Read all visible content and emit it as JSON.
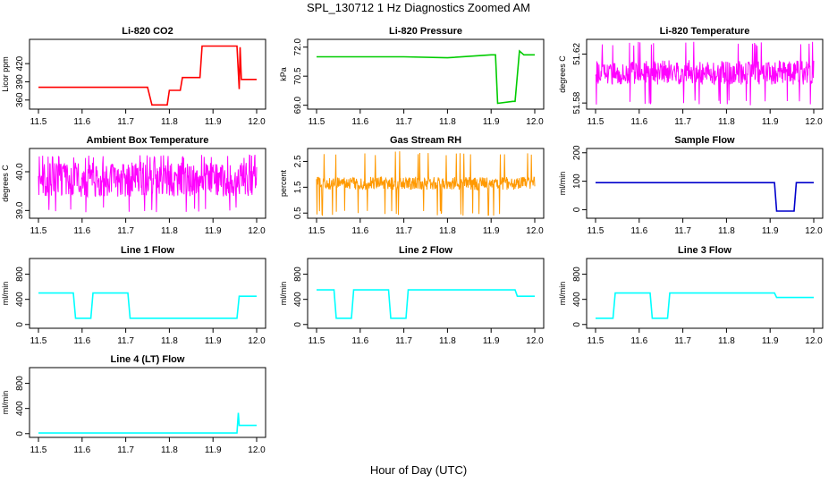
{
  "main_title": "SPL_130712  1 Hz Diagnostics Zoomed AM",
  "x_axis_label": "Hour of Day (UTC)",
  "chart_data": [
    {
      "type": "line",
      "title": "Li-820 CO2",
      "ylabel": "Licor ppm",
      "color": "#ff0000",
      "xlim": [
        11.5,
        12.0
      ],
      "xticks": [
        "11.5",
        "11.6",
        "11.7",
        "11.8",
        "11.9",
        "12.0"
      ],
      "ylim": [
        345,
        460
      ],
      "yticks": [
        360,
        390,
        420
      ],
      "series": [
        {
          "x": [
            11.5,
            11.75,
            11.76,
            11.795,
            11.8,
            11.825,
            11.83,
            11.87,
            11.875,
            11.955,
            11.96,
            11.962,
            11.965,
            12.0
          ],
          "values": [
            381,
            381,
            352,
            352,
            376,
            376,
            397,
            397,
            449,
            449,
            378,
            447,
            394,
            394
          ]
        }
      ]
    },
    {
      "type": "line",
      "title": "Li-820 Pressure",
      "ylabel": "kPa",
      "color": "#00cc00",
      "xlim": [
        11.5,
        12.0
      ],
      "xticks": [
        "11.5",
        "11.6",
        "11.7",
        "11.8",
        "11.9",
        "12.0"
      ],
      "ylim": [
        68.8,
        72.4
      ],
      "yticks": [
        "69.0",
        "70.5",
        "72.0"
      ],
      "series": [
        {
          "x": [
            11.5,
            11.6,
            11.7,
            11.8,
            11.9,
            11.91,
            11.915,
            11.95,
            11.955,
            11.965,
            11.975,
            12.0
          ],
          "values": [
            71.5,
            71.5,
            71.5,
            71.45,
            71.6,
            71.6,
            69.1,
            69.2,
            69.2,
            71.8,
            71.6,
            71.6
          ]
        }
      ]
    },
    {
      "type": "line",
      "title": "Li-820 Temperature",
      "ylabel": "degrees C",
      "color": "#ff00ff",
      "xlim": [
        11.5,
        12.0
      ],
      "xticks": [
        "11.5",
        "11.6",
        "11.7",
        "11.8",
        "11.9",
        "12.0"
      ],
      "ylim": [
        51.575,
        51.632
      ],
      "yticks": [
        "51.58",
        "51.62"
      ],
      "series": [
        {
          "x": [
            11.5,
            12.0
          ],
          "noise": {
            "center": 51.605,
            "amp": 0.01,
            "spike_hi": 51.63,
            "spike_lo": 51.578
          }
        }
      ]
    },
    {
      "type": "line",
      "title": "Ambient Box Temperature",
      "ylabel": "degrees C",
      "color": "#ff00ff",
      "xlim": [
        11.5,
        12.0
      ],
      "xticks": [
        "11.5",
        "11.6",
        "11.7",
        "11.8",
        "11.9",
        "12.0"
      ],
      "ylim": [
        38.8,
        40.6
      ],
      "yticks": [
        "39.0",
        "40.0"
      ],
      "series": [
        {
          "x": [
            11.5,
            12.0
          ],
          "noise": {
            "center": 39.8,
            "amp": 0.45,
            "spike_hi": 40.45,
            "spike_lo": 38.95
          }
        }
      ]
    },
    {
      "type": "line",
      "title": "Gas Stream RH",
      "ylabel": "percent",
      "color": "#ff9900",
      "xlim": [
        11.5,
        12.0
      ],
      "xticks": [
        "11.5",
        "11.6",
        "11.7",
        "11.8",
        "11.9",
        "12.0"
      ],
      "ylim": [
        0.3,
        3.0
      ],
      "yticks": [
        "0.5",
        "1.5",
        "2.5"
      ],
      "series": [
        {
          "x": [
            11.5,
            12.0
          ],
          "noise": {
            "center": 1.65,
            "amp": 0.25,
            "spike_hi": 2.9,
            "spike_lo": 0.4
          }
        }
      ]
    },
    {
      "type": "line",
      "title": "Sample Flow",
      "ylabel": "ml/min",
      "color": "#0000cc",
      "xlim": [
        11.5,
        12.0
      ],
      "xticks": [
        "11.5",
        "11.6",
        "11.7",
        "11.8",
        "11.9",
        "12.0"
      ],
      "ylim": [
        -30,
        215
      ],
      "yticks": [
        0,
        100,
        200
      ],
      "series": [
        {
          "x": [
            11.5,
            11.91,
            11.915,
            11.955,
            11.96,
            12.0
          ],
          "values": [
            95,
            95,
            -5,
            -5,
            95,
            95
          ]
        }
      ]
    },
    {
      "type": "line",
      "title": "Line 1 Flow",
      "ylabel": "ml/min",
      "color": "#00ffff",
      "xlim": [
        11.5,
        12.0
      ],
      "xticks": [
        "11.5",
        "11.6",
        "11.7",
        "11.8",
        "11.9",
        "12.0"
      ],
      "ylim": [
        -60,
        1050
      ],
      "yticks": [
        0,
        400,
        800
      ],
      "series": [
        {
          "x": [
            11.5,
            11.58,
            11.585,
            11.62,
            11.625,
            11.705,
            11.71,
            11.955,
            11.96,
            12.0
          ],
          "values": [
            500,
            500,
            100,
            100,
            500,
            500,
            100,
            100,
            450,
            450
          ]
        }
      ]
    },
    {
      "type": "line",
      "title": "Line 2 Flow",
      "ylabel": "ml/min",
      "color": "#00ffff",
      "xlim": [
        11.5,
        12.0
      ],
      "xticks": [
        "11.5",
        "11.6",
        "11.7",
        "11.8",
        "11.9",
        "12.0"
      ],
      "ylim": [
        -60,
        1050
      ],
      "yticks": [
        0,
        400,
        800
      ],
      "series": [
        {
          "x": [
            11.5,
            11.54,
            11.545,
            11.58,
            11.585,
            11.665,
            11.67,
            11.705,
            11.71,
            11.955,
            11.96,
            12.0
          ],
          "values": [
            550,
            550,
            100,
            100,
            550,
            550,
            100,
            100,
            550,
            550,
            450,
            450
          ]
        }
      ]
    },
    {
      "type": "line",
      "title": "Line 3 Flow",
      "ylabel": "ml/min",
      "color": "#00ffff",
      "xlim": [
        11.5,
        12.0
      ],
      "xticks": [
        "11.5",
        "11.6",
        "11.7",
        "11.8",
        "11.9",
        "12.0"
      ],
      "ylim": [
        -60,
        1050
      ],
      "yticks": [
        0,
        400,
        800
      ],
      "series": [
        {
          "x": [
            11.5,
            11.54,
            11.545,
            11.625,
            11.63,
            11.665,
            11.67,
            11.91,
            11.915,
            12.0
          ],
          "values": [
            100,
            100,
            500,
            500,
            100,
            100,
            500,
            500,
            430,
            430
          ]
        }
      ]
    },
    {
      "type": "line",
      "title": "Line 4 (LT) Flow",
      "ylabel": "ml/min",
      "color": "#00ffff",
      "xlim": [
        11.5,
        12.0
      ],
      "xticks": [
        "11.5",
        "11.6",
        "11.7",
        "11.8",
        "11.9",
        "12.0"
      ],
      "ylim": [
        -60,
        1050
      ],
      "yticks": [
        0,
        400,
        800
      ],
      "series": [
        {
          "x": [
            11.5,
            11.955,
            11.958,
            11.96,
            11.965,
            12.0
          ],
          "values": [
            10,
            10,
            330,
            130,
            130,
            130
          ]
        }
      ]
    }
  ]
}
